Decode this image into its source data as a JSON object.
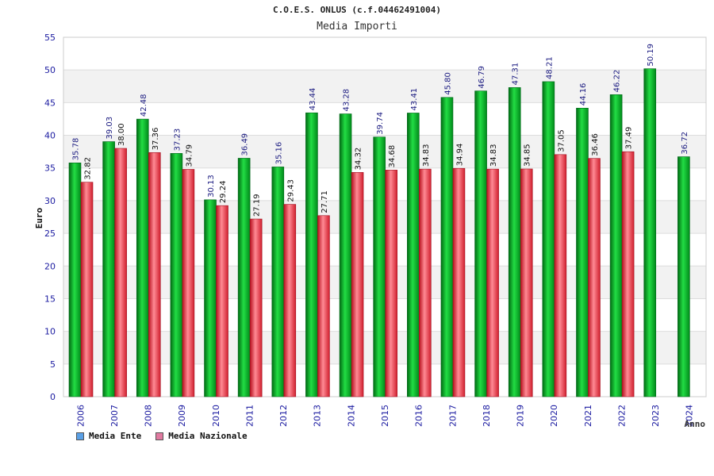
{
  "header": {
    "title": "C.O.E.S. ONLUS (c.f.04462491004)",
    "subtitle": "Media Importi"
  },
  "chart_data": {
    "type": "bar",
    "categories": [
      "2006",
      "2007",
      "2008",
      "2009",
      "2010",
      "2011",
      "2012",
      "2013",
      "2014",
      "2015",
      "2016",
      "2017",
      "2018",
      "2019",
      "2020",
      "2021",
      "2022",
      "2023",
      "2024"
    ],
    "series": [
      {
        "name": "Media Ente",
        "color": "#00aa22",
        "values": [
          35.78,
          39.03,
          42.48,
          37.23,
          30.13,
          36.49,
          35.16,
          43.44,
          43.28,
          39.74,
          43.41,
          45.8,
          46.79,
          47.31,
          48.21,
          44.16,
          46.22,
          50.19,
          36.72
        ],
        "labels": [
          "35.78",
          "39.03",
          "42.48",
          "37.23",
          "30.13",
          "36.49",
          "35.16",
          "43.44",
          "43.28",
          "39.74",
          "43.41",
          "45.80",
          "46.79",
          "47.31",
          "48.21",
          "44.16",
          "46.22",
          "50.19",
          "36.72"
        ]
      },
      {
        "name": "Media Nazionale",
        "color": "#e02838",
        "values": [
          32.82,
          38.0,
          37.36,
          34.79,
          29.24,
          27.19,
          29.43,
          27.71,
          34.32,
          34.68,
          34.83,
          34.94,
          34.83,
          34.85,
          37.05,
          36.46,
          37.49,
          null,
          null
        ],
        "labels": [
          "32.82",
          "38.00",
          "37.36",
          "34.79",
          "29.24",
          "27.19",
          "29.43",
          "27.71",
          "34.32",
          "34.68",
          "34.83",
          "34.94",
          "34.83",
          "34.85",
          "37.05",
          "36.46",
          "37.49",
          "",
          ""
        ]
      }
    ],
    "ylabel": "Euro",
    "xlabel": "Anno",
    "ylim": [
      0,
      55
    ],
    "yticks": [
      0,
      5,
      10,
      15,
      20,
      25,
      30,
      35,
      40,
      45,
      50,
      55
    ],
    "grid": true,
    "legend": [
      {
        "label": "Media Ente",
        "swatch_color": "#5aa0e6"
      },
      {
        "label": "Media Nazionale",
        "swatch_color": "#e07aa0"
      }
    ],
    "legend_position": "bottom-left"
  }
}
